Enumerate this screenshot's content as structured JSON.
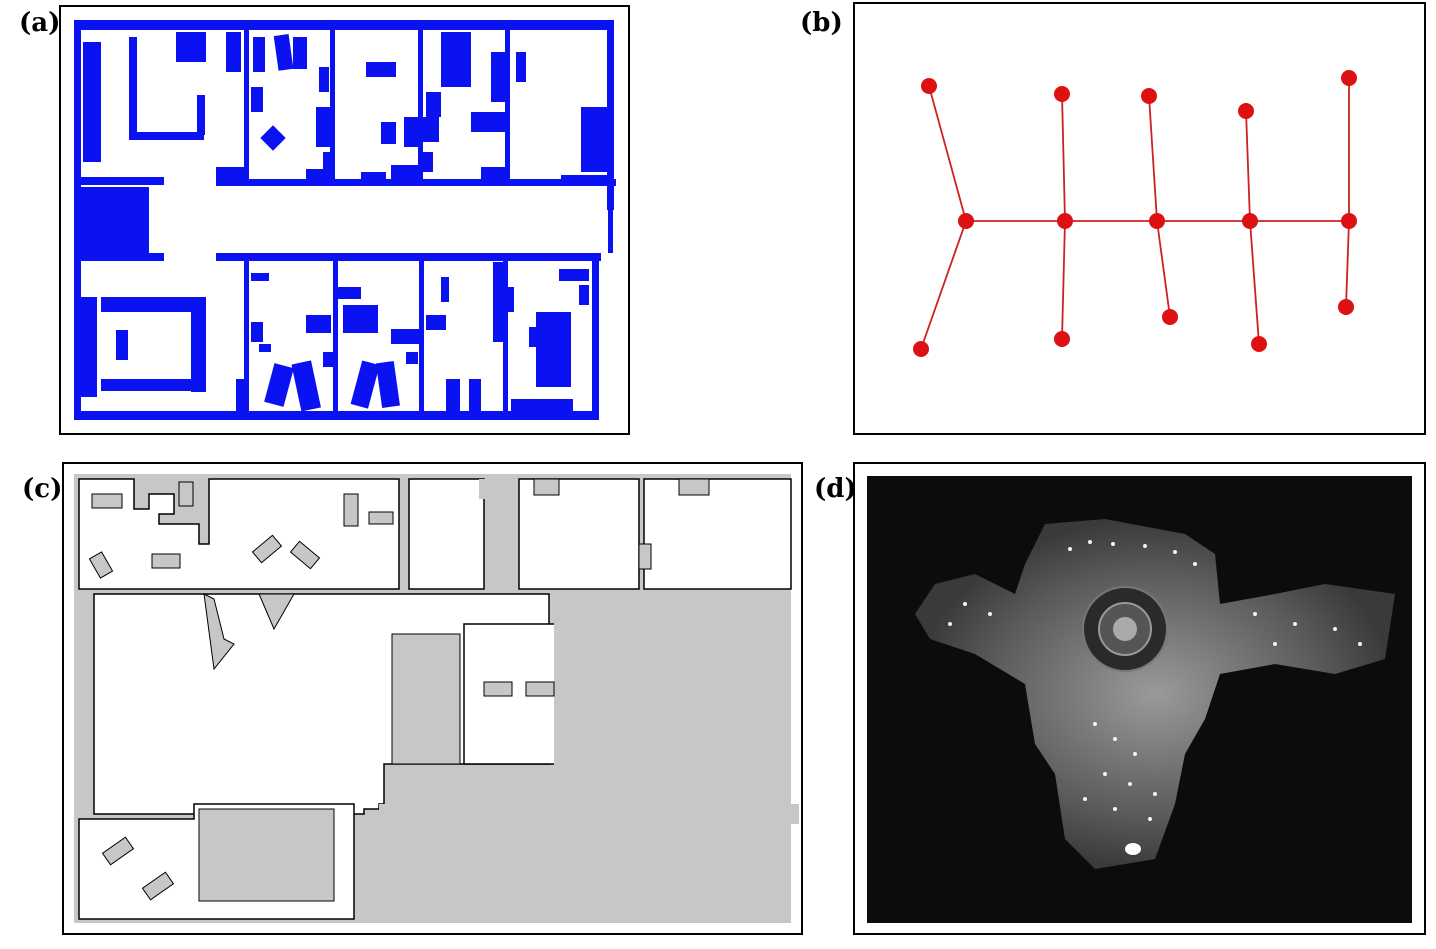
{
  "panels": [
    {
      "id": "a",
      "label": "(a)",
      "kind": "occupancy-floorplan"
    },
    {
      "id": "b",
      "label": "(b)",
      "kind": "topological-graph"
    },
    {
      "id": "c",
      "label": "(c)",
      "kind": "grid-map"
    },
    {
      "id": "d",
      "label": "(d)",
      "kind": "ceiling-mosaic"
    }
  ],
  "colors": {
    "floorplan_obstacle": "#0a12f2",
    "graph_node": "#dd1111",
    "graph_edge": "#cc2222",
    "gridmap_unknown": "#c6c7c9",
    "gridmap_wall": "#000000",
    "mosaic_background": "#0c0c0c"
  },
  "graph": {
    "nodes": [
      {
        "id": "n1",
        "col": 0,
        "row": "top"
      },
      {
        "id": "n2",
        "col": 0,
        "row": "mid"
      },
      {
        "id": "n3",
        "col": 0,
        "row": "bottom"
      },
      {
        "id": "n4",
        "col": 1,
        "row": "top"
      },
      {
        "id": "n5",
        "col": 1,
        "row": "mid"
      },
      {
        "id": "n6",
        "col": 1,
        "row": "bottom"
      },
      {
        "id": "n7",
        "col": 2,
        "row": "top"
      },
      {
        "id": "n8",
        "col": 2,
        "row": "mid"
      },
      {
        "id": "n9",
        "col": 2,
        "row": "bottom"
      },
      {
        "id": "n10",
        "col": 3,
        "row": "top"
      },
      {
        "id": "n11",
        "col": 3,
        "row": "mid"
      },
      {
        "id": "n12",
        "col": 3,
        "row": "bottom"
      },
      {
        "id": "n13",
        "col": 4,
        "row": "top"
      },
      {
        "id": "n14",
        "col": 4,
        "row": "mid"
      },
      {
        "id": "n15",
        "col": 4,
        "row": "bottom"
      }
    ],
    "edges": [
      [
        "n1",
        "n2"
      ],
      [
        "n2",
        "n3"
      ],
      [
        "n2",
        "n5"
      ],
      [
        "n5",
        "n8"
      ],
      [
        "n8",
        "n11"
      ],
      [
        "n11",
        "n14"
      ],
      [
        "n4",
        "n5"
      ],
      [
        "n5",
        "n6"
      ],
      [
        "n7",
        "n8"
      ],
      [
        "n8",
        "n9"
      ],
      [
        "n10",
        "n11"
      ],
      [
        "n11",
        "n12"
      ],
      [
        "n13",
        "n14"
      ],
      [
        "n14",
        "n15"
      ]
    ]
  }
}
